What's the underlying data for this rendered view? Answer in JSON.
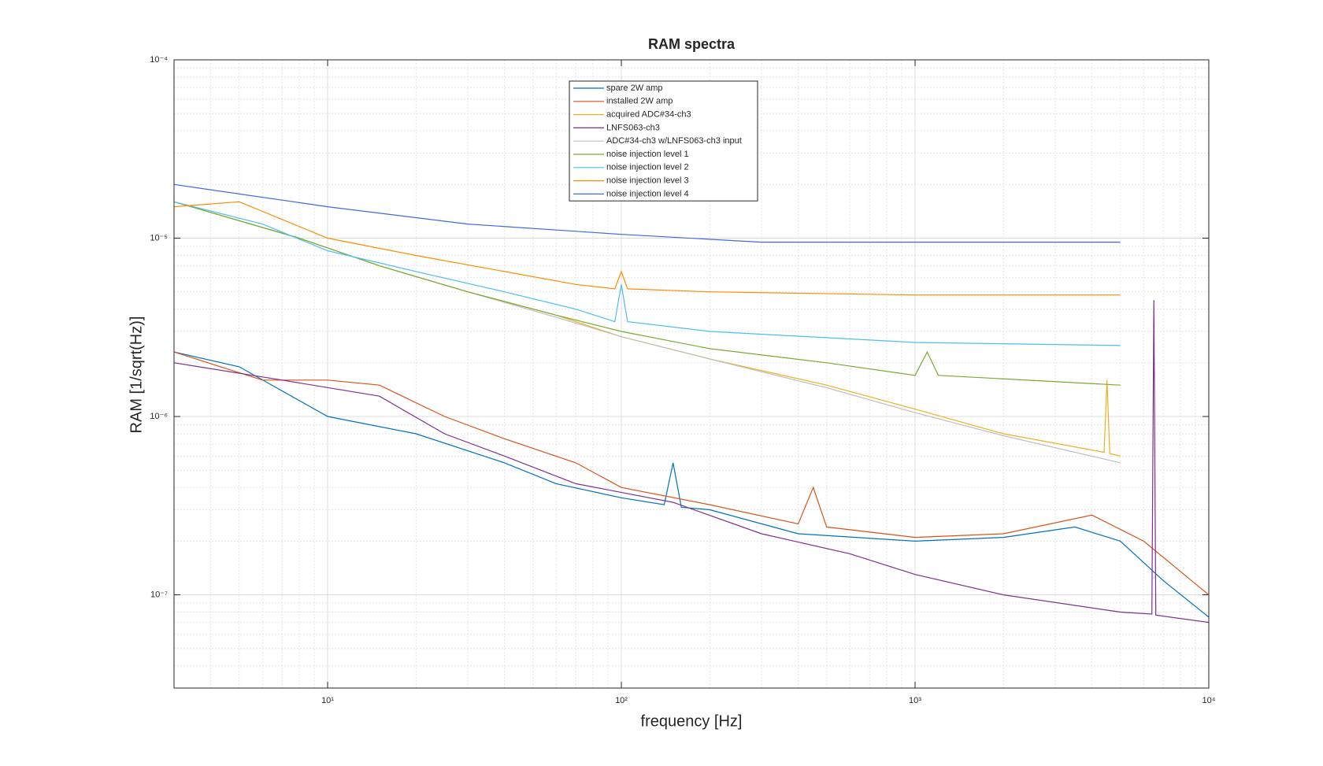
{
  "chart_data": {
    "type": "line",
    "title": "RAM spectra",
    "xlabel": "frequency [Hz]",
    "ylabel": "RAM [1/sqrt(Hz)]",
    "xscale": "log",
    "yscale": "log",
    "grid": true,
    "legend": "top",
    "xlim": [
      3,
      10000
    ],
    "ylim": [
      3e-08,
      0.0001
    ],
    "xticks": [
      {
        "value": 10,
        "label": "10¹"
      },
      {
        "value": 100,
        "label": "10²"
      },
      {
        "value": 1000,
        "label": "10³"
      },
      {
        "value": 10000,
        "label": "10⁴"
      }
    ],
    "yticks": [
      {
        "value": 1e-07,
        "label": "10⁻⁷"
      },
      {
        "value": 1e-06,
        "label": "10⁻⁶"
      },
      {
        "value": 1e-05,
        "label": "10⁻⁵"
      },
      {
        "value": 0.0001,
        "label": "10⁻⁴"
      }
    ],
    "xminorticks": [
      4,
      5,
      6,
      7,
      8,
      9,
      20,
      30,
      40,
      50,
      60,
      70,
      80,
      90,
      200,
      300,
      400,
      500,
      600,
      700,
      800,
      900,
      2000,
      3000,
      4000,
      5000,
      6000,
      7000,
      8000,
      9000
    ],
    "yminorticks": [
      4e-08,
      5e-08,
      6e-08,
      7e-08,
      8e-08,
      9e-08,
      2e-07,
      3e-07,
      4e-07,
      5e-07,
      6e-07,
      7e-07,
      8e-07,
      9e-07,
      2e-06,
      3e-06,
      4e-06,
      5e-06,
      6e-06,
      7e-06,
      8e-06,
      9e-06,
      2e-05,
      3e-05,
      4e-05,
      5e-05,
      6e-05,
      7e-05,
      8e-05,
      9e-05
    ],
    "series": [
      {
        "name": "spare 2W amp",
        "color": "#0072bd",
        "x": [
          3,
          5,
          10,
          20,
          40,
          60,
          100,
          140,
          150,
          160,
          200,
          400,
          1000,
          2000,
          3500,
          5000,
          7000,
          10000
        ],
        "values": [
          2.3e-06,
          1.9e-06,
          1e-06,
          8e-07,
          5.5e-07,
          4.2e-07,
          3.5e-07,
          3.2e-07,
          5.5e-07,
          3.1e-07,
          3e-07,
          2.2e-07,
          2e-07,
          2.1e-07,
          2.4e-07,
          2e-07,
          1.2e-07,
          7.5e-08
        ]
      },
      {
        "name": "installed 2W amp",
        "color": "#d95319",
        "x": [
          3,
          6,
          10,
          15,
          25,
          40,
          70,
          100,
          200,
          400,
          450,
          500,
          1000,
          2000,
          4000,
          6000,
          10000
        ],
        "values": [
          2.3e-06,
          1.6e-06,
          1.6e-06,
          1.5e-06,
          1e-06,
          7.5e-07,
          5.5e-07,
          4e-07,
          3.2e-07,
          2.5e-07,
          4e-07,
          2.4e-07,
          2.1e-07,
          2.2e-07,
          2.8e-07,
          2e-07,
          1e-07
        ]
      },
      {
        "name": "acquired ADC#34-ch3",
        "color": "#edb120",
        "x": [
          3,
          8,
          15,
          30,
          60,
          100,
          200,
          500,
          1000,
          2000,
          4400,
          4500,
          4600,
          5000
        ],
        "values": [
          1.6e-05,
          1e-05,
          7e-06,
          5e-06,
          3.7e-06,
          2.8e-06,
          2.1e-06,
          1.5e-06,
          1.1e-06,
          8e-07,
          6.3e-07,
          1.6e-06,
          6.2e-07,
          6e-07
        ]
      },
      {
        "name": "LNFS063-ch3",
        "color": "#7e2f8e",
        "x": [
          3,
          7,
          15,
          25,
          40,
          70,
          150,
          300,
          600,
          1000,
          2000,
          5000,
          6400,
          6500,
          6600,
          10000
        ],
        "values": [
          2e-06,
          1.6e-06,
          1.3e-06,
          8e-07,
          6e-07,
          4.2e-07,
          3.3e-07,
          2.2e-07,
          1.7e-07,
          1.3e-07,
          1e-07,
          8e-08,
          7.8e-08,
          4.5e-06,
          7.7e-08,
          7e-08
        ]
      },
      {
        "name": "ADC#34-ch3 w/LNFS063-ch3 input",
        "color": "#bfbfbf",
        "x": [
          3,
          8,
          15,
          30,
          60,
          100,
          200,
          500,
          1000,
          2000,
          5000
        ],
        "values": [
          1.6e-05,
          1e-05,
          7e-06,
          5e-06,
          3.6e-06,
          2.8e-06,
          2.1e-06,
          1.45e-06,
          1.05e-06,
          7.8e-07,
          5.5e-07
        ]
      },
      {
        "name": "noise injection level 1",
        "color": "#77ac30",
        "x": [
          3,
          8,
          15,
          30,
          60,
          100,
          200,
          500,
          1000,
          1100,
          1200,
          5000
        ],
        "values": [
          1.6e-05,
          1e-05,
          7e-06,
          5e-06,
          3.7e-06,
          3e-06,
          2.4e-06,
          2e-06,
          1.7e-06,
          2.3e-06,
          1.7e-06,
          1.5e-06
        ]
      },
      {
        "name": "noise injection level 2",
        "color": "#4dbeee",
        "x": [
          3,
          6,
          10,
          20,
          40,
          70,
          95,
          100,
          105,
          200,
          1000,
          5000
        ],
        "values": [
          1.6e-05,
          1.2e-05,
          8.5e-06,
          6.5e-06,
          5e-06,
          4e-06,
          3.4e-06,
          5.5e-06,
          3.4e-06,
          3e-06,
          2.6e-06,
          2.5e-06
        ]
      },
      {
        "name": "noise injection level 3",
        "color": "#ff8c00",
        "x": [
          3,
          5,
          10,
          20,
          40,
          70,
          95,
          100,
          105,
          200,
          1000,
          5000
        ],
        "values": [
          1.5e-05,
          1.6e-05,
          1e-05,
          8e-06,
          6.5e-06,
          5.5e-06,
          5.2e-06,
          6.5e-06,
          5.2e-06,
          5e-06,
          4.8e-06,
          4.8e-06
        ]
      },
      {
        "name": "noise injection level 4",
        "color": "#4169e1",
        "x": [
          3,
          10,
          30,
          100,
          300,
          1000,
          5000
        ],
        "values": [
          2e-05,
          1.5e-05,
          1.2e-05,
          1.05e-05,
          9.5e-06,
          9.5e-06,
          9.5e-06
        ]
      }
    ]
  }
}
